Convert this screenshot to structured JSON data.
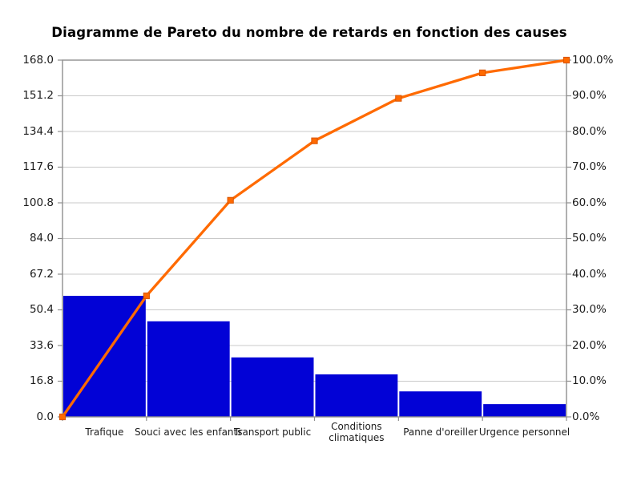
{
  "chart_data": {
    "type": "pareto (bar + cumulative line)",
    "title": "Diagramme de Pareto du nombre de retards en fonction des causes",
    "categories": [
      "Trafique",
      "Souci avec les enfants",
      "Transport public",
      "Conditions climatiques",
      "Panne d'oreiller",
      "Urgence personnel"
    ],
    "category_label_lines": [
      [
        "Trafique"
      ],
      [
        "Souci avec les enfants"
      ],
      [
        "Transport public"
      ],
      [
        "Conditions",
        "climatiques"
      ],
      [
        "Panne d'oreiller"
      ],
      [
        "Urgence personnel"
      ]
    ],
    "bars": {
      "values": [
        57,
        45,
        28,
        20,
        12,
        6
      ],
      "total": 168,
      "color": "#0202D6"
    },
    "cumulative_line": {
      "percent": [
        0.0,
        33.93,
        60.71,
        77.38,
        89.29,
        96.43,
        100.0
      ],
      "cumulative_counts": [
        0,
        57,
        102,
        130,
        150,
        162,
        168
      ],
      "color": "#FF6A00",
      "marker": "square",
      "marker_edge_color": "#D85400"
    },
    "left_axis": {
      "min": 0.0,
      "max": 168.0,
      "step": 16.8,
      "tick_labels": [
        "0.0",
        "16.8",
        "33.6",
        "50.4",
        "67.2",
        "84.0",
        "100.8",
        "117.6",
        "134.4",
        "151.2",
        "168.0"
      ]
    },
    "right_axis": {
      "min": 0,
      "max": 100,
      "step": 10,
      "tick_labels": [
        "0.0%",
        "10.0%",
        "20.0%",
        "30.0%",
        "40.0%",
        "50.0%",
        "60.0%",
        "70.0%",
        "80.0%",
        "90.0%",
        "100.0%"
      ]
    },
    "grid": {
      "horizontal": true,
      "vertical": false,
      "color": "#C9C9C9",
      "frame_color": "#8F8F8F"
    },
    "legend": "none",
    "background": "#FFFFFF"
  }
}
